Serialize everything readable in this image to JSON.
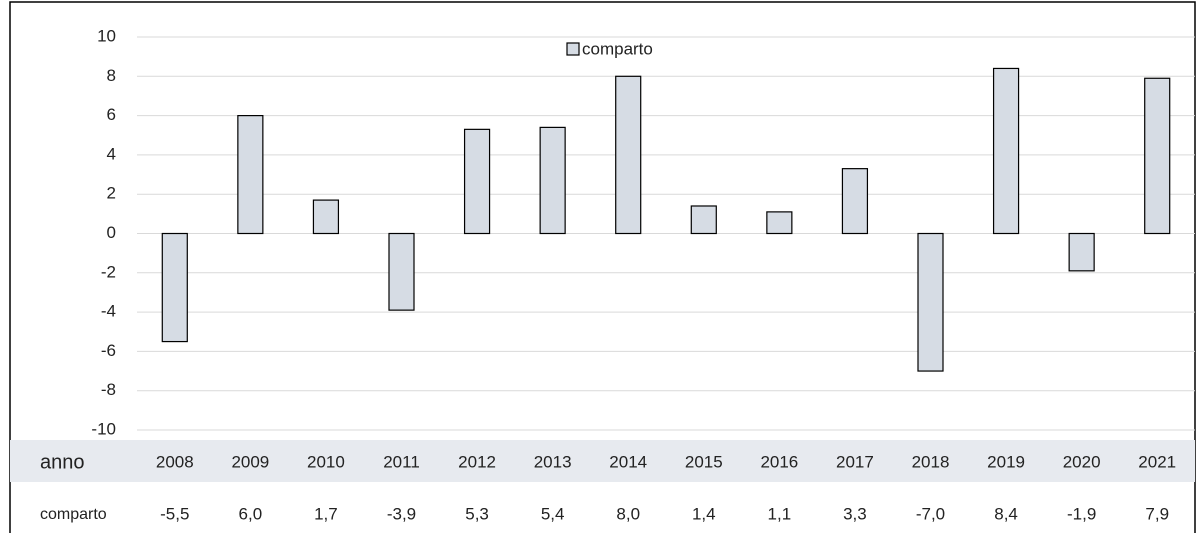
{
  "chart_data": {
    "type": "bar",
    "x_label": "anno",
    "categories": [
      "2008",
      "2009",
      "2010",
      "2011",
      "2012",
      "2013",
      "2014",
      "2015",
      "2016",
      "2017",
      "2018",
      "2019",
      "2020",
      "2021"
    ],
    "series": [
      {
        "name": "comparto",
        "color": "#d6dce4",
        "values": [
          -5.5,
          6.0,
          1.7,
          -3.9,
          5.3,
          5.4,
          8.0,
          1.4,
          1.1,
          3.3,
          -7.0,
          8.4,
          -1.9,
          7.9
        ],
        "value_labels": [
          "-5,5",
          "6,0",
          "1,7",
          "-3,9",
          "5,3",
          "5,4",
          "8,0",
          "1,4",
          "1,1",
          "3,3",
          "-7,0",
          "8,4",
          "-1,9",
          "7,9"
        ]
      }
    ],
    "ylim": [
      -10,
      10
    ],
    "yticks": [
      -10,
      -8,
      -6,
      -4,
      -2,
      0,
      2,
      4,
      6,
      8,
      10
    ],
    "grid": true
  }
}
